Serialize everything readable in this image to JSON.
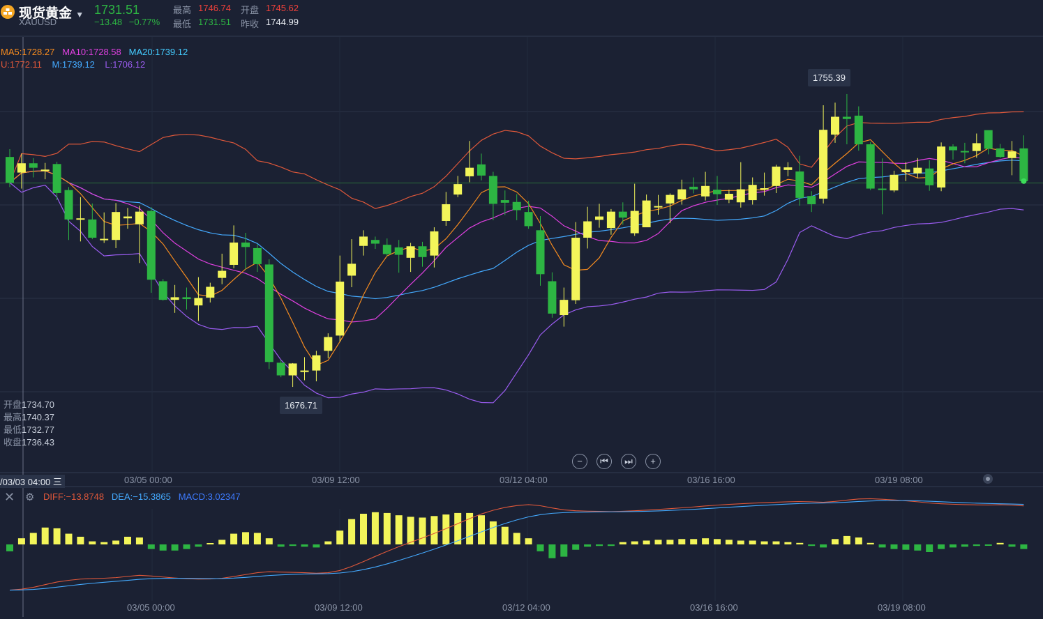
{
  "header": {
    "title": "现货黄金",
    "symbol": "XAUUSD",
    "price": "1731.51",
    "change": "−13.48",
    "change_pct": "−0.77%",
    "high_label": "最高",
    "high": "1746.74",
    "open_label": "开盘",
    "open": "1745.62",
    "low_label": "最低",
    "low": "1731.51",
    "prev_label": "昨收",
    "prev": "1744.99"
  },
  "legend": {
    "ma5": "MA5:1728.27",
    "ma10": "MA10:1728.58",
    "ma20": "MA20:1739.12",
    "boll_u": "U:1772.11",
    "boll_m": "M:1739.12",
    "boll_l": "L:1706.12"
  },
  "crosshair_ohlc": {
    "open_label": "开盘",
    "open": "1734.70",
    "high_label": "最高",
    "high": "1740.37",
    "low_label": "最低",
    "low": "1732.77",
    "close_label": "收盘",
    "close": "1736.43",
    "time": "/03/03 04:00",
    "weekday": "三"
  },
  "callouts": {
    "max": "1755.39",
    "min": "1676.71"
  },
  "controls": [
    "zoom-out",
    "prev",
    "next",
    "zoom-in"
  ],
  "macd_legend": {
    "diff": "DIFF:−13.8748",
    "dea": "DEA:−15.3865",
    "macd": "MACD:3.02347"
  },
  "colors": {
    "background": "#1b2133",
    "up": "#f3f55a",
    "down": "#2db543",
    "ma5": "#f58b1f",
    "ma10": "#e040e0",
    "ma20": "#44aaff",
    "boll_u": "#e0583a",
    "boll_m": "#44aaff",
    "boll_l": "#9a5cf0",
    "diff": "#e0583a",
    "dea": "#44aaff"
  },
  "chart_data": [
    {
      "type": "candlestick",
      "x_ticks": [
        "03/05 00:00",
        "03/09 12:00",
        "03/12 04:00",
        "03/16 16:00",
        "03/19 08:00"
      ],
      "candles": [
        {
          "o": 1738.5,
          "c": 1731.6,
          "h": 1740.6,
          "l": 1730.4
        },
        {
          "o": 1734.3,
          "c": 1736.8,
          "h": 1739.4,
          "l": 1730.0
        },
        {
          "o": 1736.8,
          "c": 1735.6,
          "h": 1738.2,
          "l": 1733.0
        },
        {
          "o": 1734.7,
          "c": 1735.1,
          "h": 1736.9,
          "l": 1732.5
        },
        {
          "o": 1736.6,
          "c": 1728.8,
          "h": 1737.2,
          "l": 1726.9
        },
        {
          "o": 1729.6,
          "c": 1721.7,
          "h": 1730.4,
          "l": 1716.2
        },
        {
          "o": 1721.8,
          "c": 1722.0,
          "h": 1727.7,
          "l": 1715.8
        },
        {
          "o": 1721.7,
          "c": 1716.8,
          "h": 1726.0,
          "l": 1716.4
        },
        {
          "o": 1716.5,
          "c": 1716.5,
          "h": 1723.6,
          "l": 1715.4
        },
        {
          "o": 1716.2,
          "c": 1723.7,
          "h": 1726.1,
          "l": 1714.0
        },
        {
          "o": 1722.0,
          "c": 1722.5,
          "h": 1724.8,
          "l": 1719.2
        },
        {
          "o": 1720.4,
          "c": 1723.8,
          "h": 1725.4,
          "l": 1710.0
        },
        {
          "o": 1724.0,
          "c": 1705.5,
          "h": 1725.0,
          "l": 1702.0
        },
        {
          "o": 1705.1,
          "c": 1700.1,
          "h": 1705.7,
          "l": 1699.9
        },
        {
          "o": 1700.1,
          "c": 1700.8,
          "h": 1704.1,
          "l": 1696.6
        },
        {
          "o": 1700.8,
          "c": 1700.3,
          "h": 1703.4,
          "l": 1697.5
        },
        {
          "o": 1698.6,
          "c": 1700.6,
          "h": 1706.2,
          "l": 1694.4
        },
        {
          "o": 1700.7,
          "c": 1703.6,
          "h": 1704.7,
          "l": 1699.4
        },
        {
          "o": 1706.0,
          "c": 1707.9,
          "h": 1712.5,
          "l": 1704.3
        },
        {
          "o": 1709.5,
          "c": 1715.5,
          "h": 1720.1,
          "l": 1708.6
        },
        {
          "o": 1715.5,
          "c": 1714.3,
          "h": 1718.1,
          "l": 1708.3
        },
        {
          "o": 1714.0,
          "c": 1709.7,
          "h": 1715.0,
          "l": 1707.6
        },
        {
          "o": 1709.6,
          "c": 1683.4,
          "h": 1711.0,
          "l": 1681.5
        },
        {
          "o": 1683.2,
          "c": 1679.8,
          "h": 1683.9,
          "l": 1679.3
        },
        {
          "o": 1679.8,
          "c": 1683.0,
          "h": 1683.1,
          "l": 1676.7
        },
        {
          "o": 1680.7,
          "c": 1681.1,
          "h": 1684.7,
          "l": 1678.5
        },
        {
          "o": 1681.1,
          "c": 1685.2,
          "h": 1686.4,
          "l": 1678.2
        },
        {
          "o": 1686.4,
          "c": 1690.1,
          "h": 1691.1,
          "l": 1684.4
        },
        {
          "o": 1690.5,
          "c": 1705.0,
          "h": 1712.0,
          "l": 1688.9
        },
        {
          "o": 1706.6,
          "c": 1709.8,
          "h": 1716.4,
          "l": 1703.5
        },
        {
          "o": 1714.6,
          "c": 1717.1,
          "h": 1718.8,
          "l": 1712.0
        },
        {
          "o": 1716.2,
          "c": 1715.2,
          "h": 1717.1,
          "l": 1713.8
        },
        {
          "o": 1714.9,
          "c": 1712.4,
          "h": 1716.6,
          "l": 1711.8
        },
        {
          "o": 1714.2,
          "c": 1712.2,
          "h": 1716.2,
          "l": 1707.4
        },
        {
          "o": 1711.4,
          "c": 1714.5,
          "h": 1715.4,
          "l": 1707.6
        },
        {
          "o": 1714.5,
          "c": 1711.6,
          "h": 1715.7,
          "l": 1709.0
        },
        {
          "o": 1712.0,
          "c": 1718.5,
          "h": 1719.6,
          "l": 1708.8
        },
        {
          "o": 1721.3,
          "c": 1725.8,
          "h": 1729.1,
          "l": 1720.0
        },
        {
          "o": 1728.4,
          "c": 1731.2,
          "h": 1733.4,
          "l": 1727.7
        },
        {
          "o": 1733.3,
          "c": 1735.6,
          "h": 1742.8,
          "l": 1731.7
        },
        {
          "o": 1736.5,
          "c": 1733.5,
          "h": 1739.4,
          "l": 1732.2
        },
        {
          "o": 1733.4,
          "c": 1725.9,
          "h": 1734.5,
          "l": 1721.5
        },
        {
          "o": 1726.9,
          "c": 1726.2,
          "h": 1729.5,
          "l": 1722.9
        },
        {
          "o": 1726.4,
          "c": 1724.2,
          "h": 1728.5,
          "l": 1721.5
        },
        {
          "o": 1723.7,
          "c": 1719.9,
          "h": 1726.7,
          "l": 1719.2
        },
        {
          "o": 1718.8,
          "c": 1707.0,
          "h": 1722.6,
          "l": 1703.9
        },
        {
          "o": 1705.1,
          "c": 1696.4,
          "h": 1707.5,
          "l": 1695.3
        },
        {
          "o": 1696.0,
          "c": 1700.1,
          "h": 1703.4,
          "l": 1692.9
        },
        {
          "o": 1700.0,
          "c": 1716.8,
          "h": 1721.0,
          "l": 1699.0
        },
        {
          "o": 1716.8,
          "c": 1721.2,
          "h": 1725.1,
          "l": 1713.9
        },
        {
          "o": 1721.6,
          "c": 1722.5,
          "h": 1725.9,
          "l": 1719.5
        },
        {
          "o": 1719.4,
          "c": 1723.8,
          "h": 1724.5,
          "l": 1717.6
        },
        {
          "o": 1723.8,
          "c": 1722.2,
          "h": 1726.3,
          "l": 1720.3
        },
        {
          "o": 1718.0,
          "c": 1724.0,
          "h": 1731.3,
          "l": 1717.3
        },
        {
          "o": 1719.6,
          "c": 1726.8,
          "h": 1728.4,
          "l": 1719.7
        },
        {
          "o": 1725.0,
          "c": 1725.3,
          "h": 1728.3,
          "l": 1723.0
        },
        {
          "o": 1726.0,
          "c": 1728.3,
          "h": 1728.7,
          "l": 1720.7
        },
        {
          "o": 1727.1,
          "c": 1729.8,
          "h": 1732.4,
          "l": 1725.7
        },
        {
          "o": 1730.5,
          "c": 1729.8,
          "h": 1733.0,
          "l": 1728.7
        },
        {
          "o": 1727.9,
          "c": 1730.7,
          "h": 1734.5,
          "l": 1726.8
        },
        {
          "o": 1729.7,
          "c": 1728.5,
          "h": 1733.4,
          "l": 1725.6
        },
        {
          "o": 1727.0,
          "c": 1728.6,
          "h": 1729.7,
          "l": 1726.1
        },
        {
          "o": 1726.3,
          "c": 1729.8,
          "h": 1737.1,
          "l": 1724.9
        },
        {
          "o": 1726.9,
          "c": 1731.0,
          "h": 1733.0,
          "l": 1725.7
        },
        {
          "o": 1729.9,
          "c": 1730.1,
          "h": 1734.3,
          "l": 1728.1
        },
        {
          "o": 1730.7,
          "c": 1735.9,
          "h": 1736.4,
          "l": 1728.8
        },
        {
          "o": 1735.0,
          "c": 1735.7,
          "h": 1737.1,
          "l": 1733.3
        },
        {
          "o": 1734.6,
          "c": 1727.5,
          "h": 1738.8,
          "l": 1725.4
        },
        {
          "o": 1728.0,
          "c": 1725.8,
          "h": 1729.3,
          "l": 1723.7
        },
        {
          "o": 1727.3,
          "c": 1745.8,
          "h": 1752.4,
          "l": 1726.0
        },
        {
          "o": 1744.5,
          "c": 1749.3,
          "h": 1753.1,
          "l": 1742.3
        },
        {
          "o": 1749.3,
          "c": 1748.7,
          "h": 1755.4,
          "l": 1741.9
        },
        {
          "o": 1749.6,
          "c": 1741.9,
          "h": 1752.1,
          "l": 1740.2
        },
        {
          "o": 1741.9,
          "c": 1730.0,
          "h": 1742.5,
          "l": 1729.6
        },
        {
          "o": 1730.0,
          "c": 1729.8,
          "h": 1738.1,
          "l": 1723.1
        },
        {
          "o": 1729.5,
          "c": 1733.7,
          "h": 1734.8,
          "l": 1729.0
        },
        {
          "o": 1734.4,
          "c": 1735.1,
          "h": 1737.1,
          "l": 1732.0
        },
        {
          "o": 1734.1,
          "c": 1735.6,
          "h": 1738.2,
          "l": 1732.8
        },
        {
          "o": 1735.4,
          "c": 1730.9,
          "h": 1737.6,
          "l": 1729.4
        },
        {
          "o": 1730.3,
          "c": 1741.3,
          "h": 1742.4,
          "l": 1729.3
        },
        {
          "o": 1741.3,
          "c": 1740.3,
          "h": 1741.9,
          "l": 1737.8
        },
        {
          "o": 1740.1,
          "c": 1739.8,
          "h": 1742.3,
          "l": 1736.8
        },
        {
          "o": 1740.1,
          "c": 1742.2,
          "h": 1744.8,
          "l": 1738.3
        },
        {
          "o": 1745.7,
          "c": 1740.7,
          "h": 1745.2,
          "l": 1739.2
        },
        {
          "o": 1740.8,
          "c": 1738.5,
          "h": 1742.0,
          "l": 1738.2
        },
        {
          "o": 1738.2,
          "c": 1740.0,
          "h": 1742.8,
          "l": 1733.6
        },
        {
          "o": 1740.8,
          "c": 1732.0,
          "h": 1744.3,
          "l": 1731.5
        }
      ],
      "ma5_last": 1728.27,
      "ma10_last": 1728.58,
      "ma20_last": 1739.12,
      "boll_u_last": 1772.11,
      "boll_m_last": 1739.12,
      "boll_l_last": 1706.12,
      "max_value": 1755.39,
      "min_value": 1676.71
    },
    {
      "type": "bar",
      "name": "MACD",
      "diff_last": -13.8748,
      "dea_last": -15.3865,
      "macd_last": 3.02347,
      "histogram": [
        -0.9,
        0.8,
        1.5,
        2.2,
        2.1,
        1.4,
        1.0,
        0.4,
        0.3,
        0.5,
        1.0,
        0.9,
        -0.6,
        -0.8,
        -0.8,
        -0.6,
        -0.3,
        0.1,
        0.6,
        1.4,
        1.6,
        1.5,
        0.8,
        -0.3,
        -0.2,
        -0.3,
        -0.4,
        0.4,
        1.8,
        3.3,
        4.0,
        4.2,
        4.1,
        3.8,
        3.6,
        3.5,
        3.7,
        3.9,
        4.1,
        4.1,
        3.8,
        3.0,
        2.3,
        1.5,
        0.8,
        -0.9,
        -1.8,
        -1.6,
        -0.7,
        -0.3,
        -0.2,
        -0.2,
        0.3,
        0.4,
        0.5,
        0.6,
        0.6,
        0.7,
        0.7,
        0.8,
        0.7,
        0.6,
        0.5,
        0.5,
        0.4,
        0.4,
        0.3,
        0.2,
        -0.2,
        -0.4,
        0.7,
        1.1,
        0.9,
        0.2,
        -0.4,
        -0.6,
        -0.7,
        -0.8,
        -1.0,
        -0.6,
        -0.4,
        -0.3,
        -0.2,
        -0.1,
        0.2,
        -0.3,
        -0.6
      ]
    }
  ]
}
